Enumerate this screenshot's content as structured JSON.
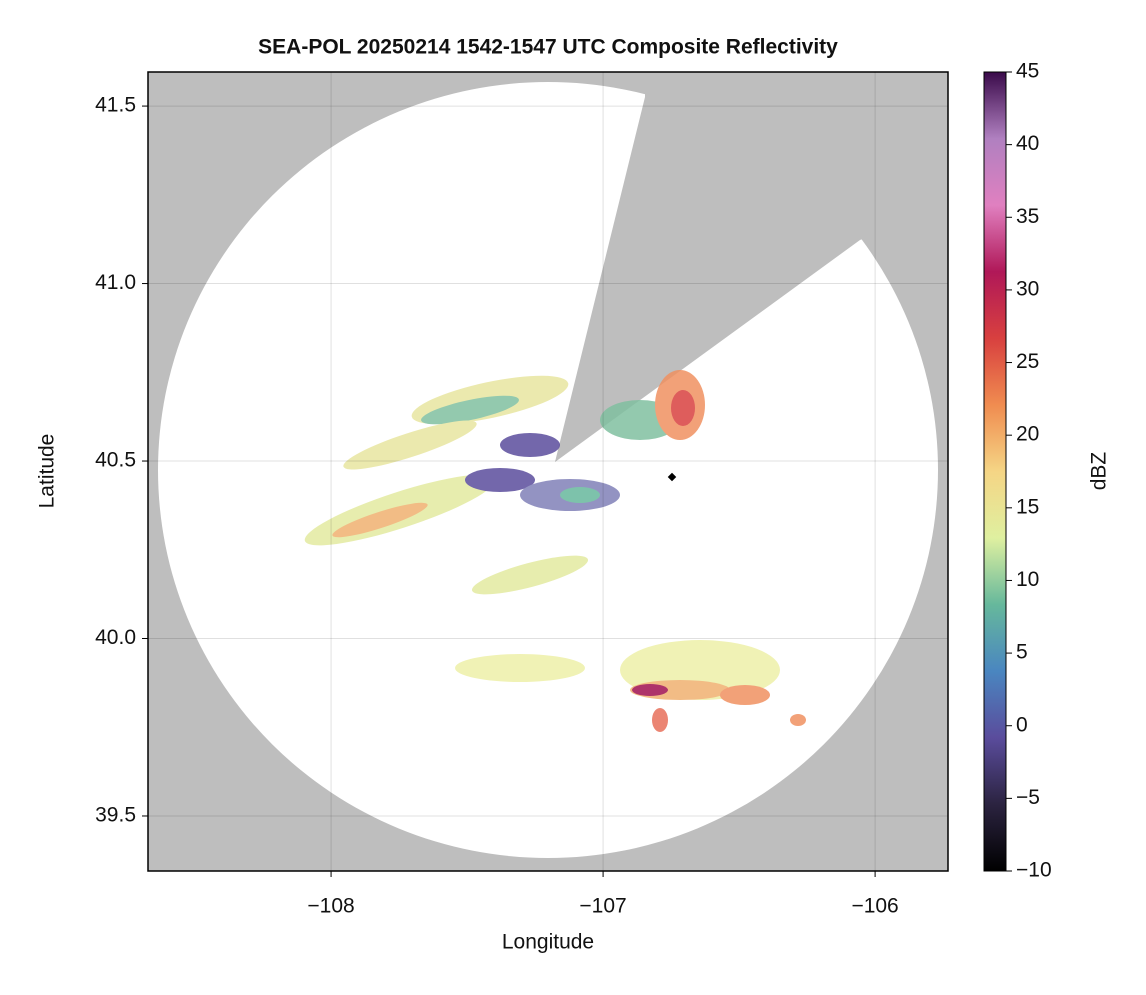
{
  "chart_data": {
    "type": "heatmap",
    "title": "SEA-POL 20250214 1542-1547 UTC Composite Reflectivity",
    "x_label": "Longitude",
    "y_label": "Latitude",
    "xlim": [
      -108.673,
      -105.732
    ],
    "xticks": [
      {
        "value": -108,
        "label": "−108"
      },
      {
        "value": -107,
        "label": "−107"
      },
      {
        "value": -106,
        "label": "−106"
      }
    ],
    "ylim": [
      39.345,
      41.596
    ],
    "yticks": [
      39.5,
      40.0,
      40.5,
      41.0,
      41.5
    ],
    "grid": true,
    "colorbar": {
      "label": "dBZ",
      "lim": [
        -10,
        45
      ],
      "ticks": [
        {
          "value": -10,
          "label": "−10"
        },
        {
          "value": -5,
          "label": "−5"
        },
        0,
        5,
        10,
        15,
        20,
        25,
        30,
        35,
        40,
        45
      ],
      "colormap": [
        "#000000",
        "#2b2340",
        "#5a4c9c",
        "#4a86c0",
        "#66b89c",
        "#dff0a0",
        "#f5d585",
        "#f08c50",
        "#d8403f",
        "#b01858",
        "#e080c0",
        "#b080c0",
        "#3a0a4a"
      ]
    }
  }
}
